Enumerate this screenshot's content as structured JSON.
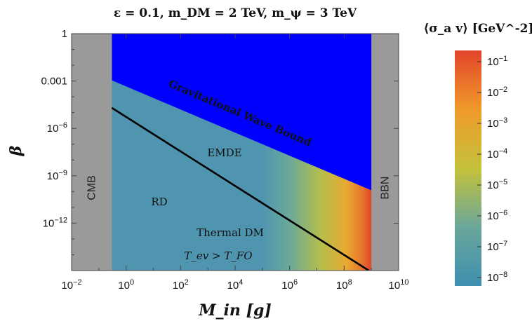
{
  "chart_data": {
    "type": "heatmap",
    "title": "ε = 0.1, m_DM = 2 TeV, m_ψ = 3 TeV",
    "xlabel": "M_in [g]",
    "ylabel": "β",
    "x_scale": "log",
    "y_scale": "log",
    "xlim": [
      0.01,
      10000000000.0
    ],
    "ylim": [
      1e-15,
      1
    ],
    "x_ticks": [
      "10^-2",
      "10^0",
      "10^2",
      "10^4",
      "10^6",
      "10^8",
      "10^10"
    ],
    "y_ticks": [
      "1",
      "0.001",
      "10^-6",
      "10^-9",
      "10^-12"
    ],
    "grid": false,
    "colorbar": {
      "label": "⟨σ_a v⟩ [GeV^-2]",
      "scale": "log",
      "range": [
        1e-08,
        0.1
      ],
      "ticks": [
        "10^-1",
        "10^-2",
        "10^-3",
        "10^-4",
        "10^-5",
        "10^-6",
        "10^-7",
        "10^-8"
      ],
      "colors": [
        "#3e8fb0",
        "#6aa79a",
        "#c5c23a",
        "#f09a2a",
        "#e2442a"
      ]
    },
    "excluded_regions": [
      {
        "label": "CMB",
        "x_range": [
          0.01,
          0.3
        ],
        "color": "#9a9a9a"
      },
      {
        "label": "BBN",
        "x_range": [
          1000000000.0,
          10000000000.0
        ],
        "color": "#9a9a9a"
      },
      {
        "label": "Gravitational Wave Bound",
        "color": "#0000ff",
        "lower_boundary": [
          {
            "x": 0.3,
            "y": 0.0011
          },
          {
            "x": 1000000000.0,
            "y": 1.2e-10
          }
        ]
      }
    ],
    "boundary_line": {
      "label": "Thermal DM boundary",
      "color": "#000000",
      "points": [
        {
          "x": 0.3,
          "y": 2e-05
        },
        {
          "x": 800000000.0,
          "y": 1e-15
        }
      ]
    },
    "annotations": {
      "emde": "EMDE",
      "rd": "RD",
      "thermal_dm": "Thermal DM",
      "condition": "T_ev > T_FO"
    }
  }
}
